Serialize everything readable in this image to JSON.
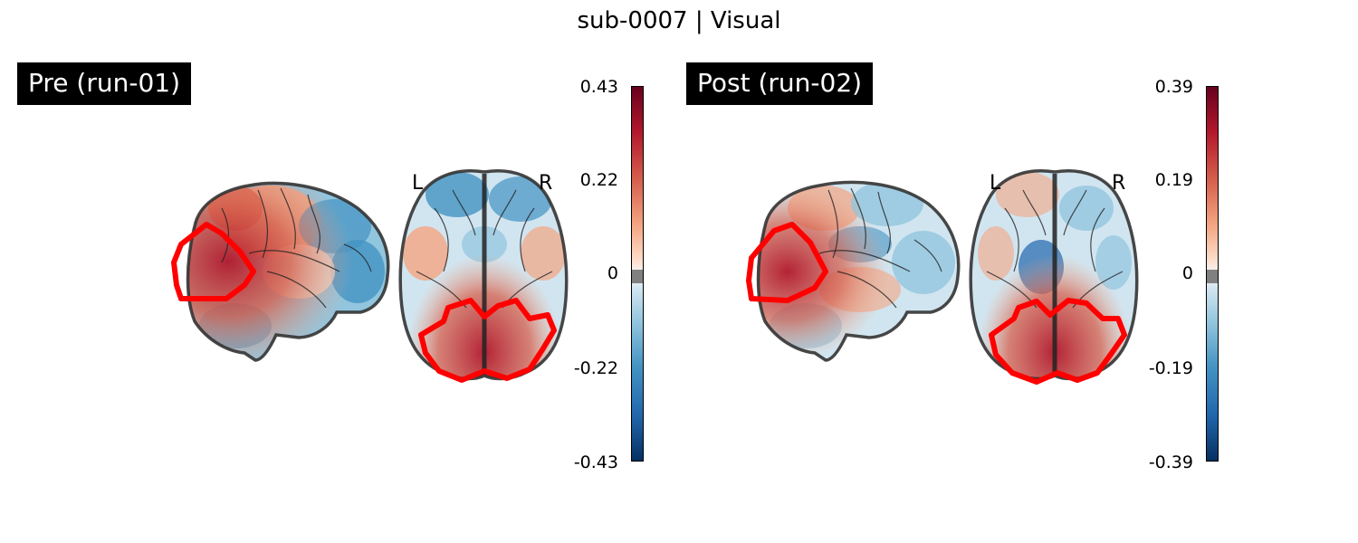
{
  "figure": {
    "title": "sub-0007 | Visual"
  },
  "chart_data": [
    {
      "type": "heatmap",
      "title": "Pre (run-01)",
      "views": [
        "sagittal",
        "axial"
      ],
      "orientation_labels": [
        "L",
        "R"
      ],
      "colormap": "RdBu_r",
      "vlim": [
        -0.43,
        0.43
      ],
      "colorbar_ticks": [
        0.43,
        0.22,
        0,
        -0.22,
        -0.43
      ],
      "colorbar_tick_labels": [
        "0.43",
        "0.22",
        "0",
        "-0.22",
        "-0.43"
      ],
      "roi_outline_color": "#ff0000"
    },
    {
      "type": "heatmap",
      "title": "Post (run-02)",
      "views": [
        "sagittal",
        "axial"
      ],
      "orientation_labels": [
        "L",
        "R"
      ],
      "colormap": "RdBu_r",
      "vlim": [
        -0.39,
        0.39
      ],
      "colorbar_ticks": [
        0.39,
        0.19,
        0,
        -0.19,
        -0.39
      ],
      "colorbar_tick_labels": [
        "0.39",
        "0.19",
        "0",
        "-0.19",
        "-0.39"
      ],
      "roi_outline_color": "#ff0000"
    }
  ]
}
